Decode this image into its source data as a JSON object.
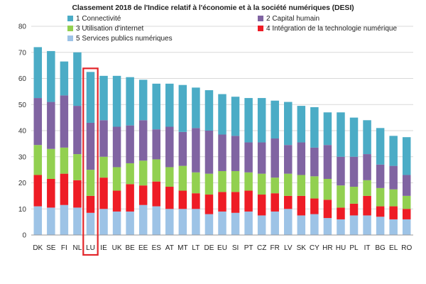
{
  "chart_data": {
    "type": "bar",
    "stacked": true,
    "title": "Classement 2018 de l'Indice relatif à l'économie et à la société numériques (DESI)",
    "xlabel": "",
    "ylabel": "",
    "ylim": [
      0,
      80
    ],
    "yticks": [
      0,
      10,
      20,
      30,
      40,
      50,
      60,
      70,
      80
    ],
    "grid": true,
    "legend_position": "top",
    "categories": [
      "DK",
      "SE",
      "FI",
      "NL",
      "LU",
      "IE",
      "UK",
      "BE",
      "EE",
      "ES",
      "AT",
      "MT",
      "LT",
      "DE",
      "EU",
      "SI",
      "PT",
      "CZ",
      "FR",
      "LV",
      "SK",
      "CY",
      "HR",
      "HU",
      "PL",
      "IT",
      "BG",
      "EL",
      "RO"
    ],
    "highlighted_category": "LU",
    "highlight_color": "#e3262b",
    "series": [
      {
        "name": "5 Services publics numériques",
        "color": "#9dc3e6",
        "values": [
          11,
          10.5,
          11.5,
          10.5,
          8.5,
          10,
          9,
          9,
          11.5,
          11,
          10,
          10,
          10,
          8,
          9,
          8.5,
          9,
          7.5,
          9,
          10,
          7.5,
          8,
          6.5,
          6,
          7.5,
          7.5,
          7,
          6,
          6
        ]
      },
      {
        "name": "4 Intégration de la technologie numérique",
        "color": "#ee1c25",
        "values": [
          12,
          11,
          12,
          10.5,
          6.5,
          12,
          8,
          10.5,
          7.5,
          9.5,
          8.5,
          7,
          6,
          7.5,
          7.5,
          8,
          8,
          8,
          7,
          5,
          7.5,
          6,
          7,
          4.5,
          4.5,
          7.5,
          4,
          5,
          4
        ]
      },
      {
        "name": "3 Utilisation d'internet",
        "color": "#92d050",
        "values": [
          11.5,
          11.5,
          10,
          10,
          10,
          8,
          9,
          8,
          9.5,
          8.5,
          7.5,
          9.5,
          8,
          8,
          8,
          8,
          7,
          8,
          6,
          8.5,
          8,
          8.5,
          8,
          8.5,
          6.5,
          6,
          7,
          6.5,
          5
        ]
      },
      {
        "name": "2 Capital humain",
        "color": "#8064a2",
        "values": [
          18,
          18,
          20,
          18.5,
          18,
          14,
          15.5,
          14.5,
          15.5,
          11.5,
          15.5,
          13,
          17,
          16.5,
          14,
          13.5,
          11.5,
          12,
          15,
          11,
          12.5,
          11,
          13,
          11,
          11.5,
          10,
          9,
          9,
          8
        ]
      },
      {
        "name": "1 Connectivité",
        "color": "#4bacc6",
        "values": [
          19.5,
          19.5,
          13,
          20.5,
          19.5,
          17,
          19.5,
          18.5,
          15.5,
          17.5,
          16.5,
          18,
          15.5,
          15.5,
          15.5,
          15,
          17,
          17,
          14.5,
          16.5,
          14,
          15.5,
          12.5,
          17,
          15,
          13,
          14,
          11.5,
          14.5
        ]
      }
    ]
  }
}
